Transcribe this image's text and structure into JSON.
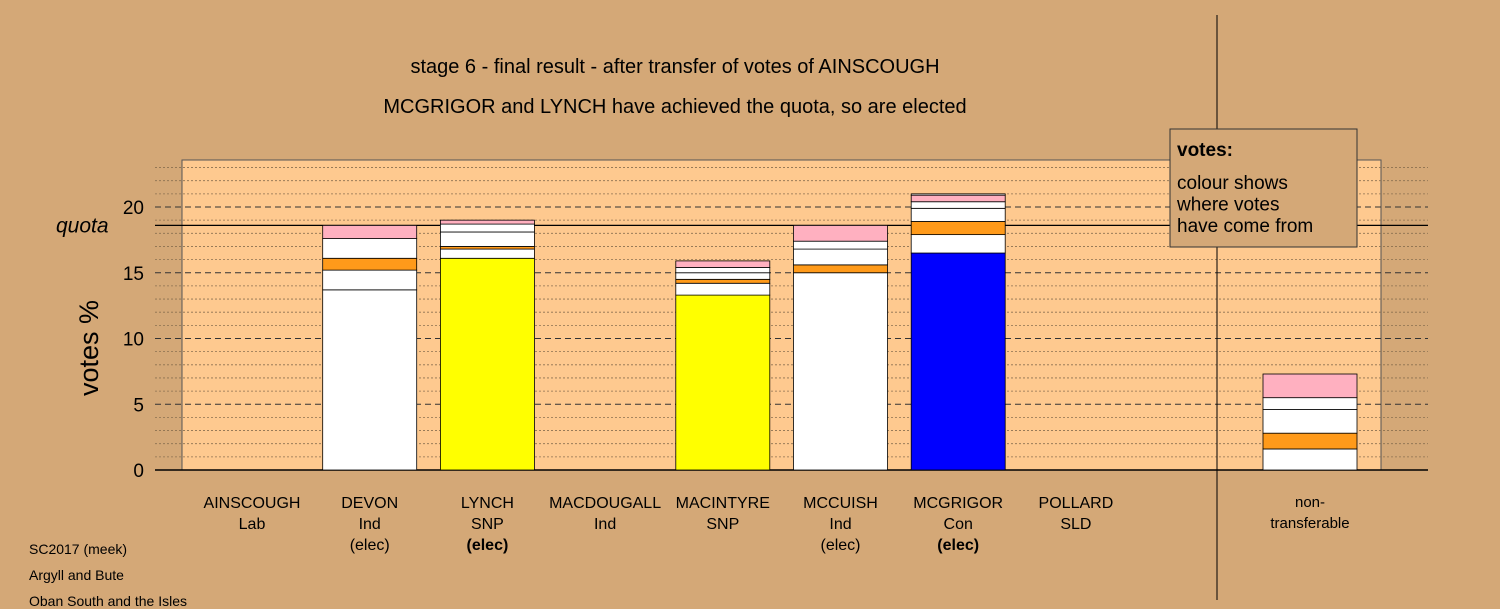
{
  "chart_data": {
    "type": "bar",
    "stacked": true,
    "title": "stage 6 - final result - after transfer of votes of AINSCOUGH",
    "subtitle": "MCGRIGOR and LYNCH have achieved the quota, so are elected",
    "ylabel": "votes %",
    "xlabel": "",
    "ylim": [
      0,
      23.5
    ],
    "yticks": [
      0,
      5,
      10,
      15,
      20
    ],
    "quota": {
      "label": "quota",
      "value": 18.6
    },
    "grid": true,
    "legend": {
      "title": "votes:",
      "lines": [
        "colour shows",
        "where votes",
        "have come from"
      ],
      "placement": "top-right"
    },
    "categories": [
      {
        "name": "AINSCOUGH",
        "party": "Lab",
        "status": "",
        "status_bold": false,
        "segments": []
      },
      {
        "name": "DEVON",
        "party": "Ind",
        "status": "(elec)",
        "status_bold": false,
        "segments": [
          {
            "value": 13.7,
            "color": "#ffffff"
          },
          {
            "value": 1.5,
            "color": "#ffffff"
          },
          {
            "value": 0.9,
            "color": "#ff9a1a"
          },
          {
            "value": 1.5,
            "color": "#ffffff"
          },
          {
            "value": 1.0,
            "color": "#ffb0c0"
          }
        ]
      },
      {
        "name": "LYNCH",
        "party": "SNP",
        "status": "(elec)",
        "status_bold": true,
        "segments": [
          {
            "value": 16.1,
            "color": "#ffff00"
          },
          {
            "value": 0.7,
            "color": "#ffffff"
          },
          {
            "value": 0.2,
            "color": "#ff9a1a"
          },
          {
            "value": 1.1,
            "color": "#ffffff"
          },
          {
            "value": 0.6,
            "color": "#ffffff"
          },
          {
            "value": 0.3,
            "color": "#ffb0c0"
          }
        ]
      },
      {
        "name": "MACDOUGALL",
        "party": "Ind",
        "status": "",
        "status_bold": false,
        "segments": []
      },
      {
        "name": "MACINTYRE",
        "party": "SNP",
        "status": "",
        "status_bold": false,
        "segments": [
          {
            "value": 13.3,
            "color": "#ffff00"
          },
          {
            "value": 0.9,
            "color": "#ffffff"
          },
          {
            "value": 0.3,
            "color": "#ff9a1a"
          },
          {
            "value": 0.5,
            "color": "#ffffff"
          },
          {
            "value": 0.4,
            "color": "#ffffff"
          },
          {
            "value": 0.5,
            "color": "#ffb0c0"
          }
        ]
      },
      {
        "name": "MCCUISH",
        "party": "Ind",
        "status": "(elec)",
        "status_bold": false,
        "segments": [
          {
            "value": 15.0,
            "color": "#ffffff"
          },
          {
            "value": 0.6,
            "color": "#ff9a1a"
          },
          {
            "value": 1.2,
            "color": "#ffffff"
          },
          {
            "value": 0.6,
            "color": "#ffffff"
          },
          {
            "value": 1.2,
            "color": "#ffb0c0"
          }
        ]
      },
      {
        "name": "MCGRIGOR",
        "party": "Con",
        "status": "(elec)",
        "status_bold": true,
        "segments": [
          {
            "value": 16.5,
            "color": "#0000ff"
          },
          {
            "value": 1.4,
            "color": "#ffffff"
          },
          {
            "value": 1.0,
            "color": "#ff9a1a"
          },
          {
            "value": 1.0,
            "color": "#ffffff"
          },
          {
            "value": 0.5,
            "color": "#ffffff"
          },
          {
            "value": 0.5,
            "color": "#ffb0c0"
          },
          {
            "value": 0.1,
            "color": "#ffffff"
          }
        ]
      },
      {
        "name": "POLLARD",
        "party": "SLD",
        "status": "",
        "status_bold": false,
        "segments": []
      }
    ],
    "nontransferable": {
      "label_lines": [
        "non-",
        "transferable"
      ],
      "segments": [
        {
          "value": 1.6,
          "color": "#ffffff"
        },
        {
          "value": 1.2,
          "color": "#ff9a1a"
        },
        {
          "value": 1.8,
          "color": "#ffffff"
        },
        {
          "value": 0.9,
          "color": "#ffffff"
        },
        {
          "value": 1.8,
          "color": "#ffb0c0"
        }
      ]
    }
  },
  "footer": {
    "line1": "SC2017 (meek)",
    "line2": "Argyll and Bute",
    "line3": "Oban South and the Isles"
  },
  "colors": {
    "background": "#d4a877",
    "plot_area": "#fec98f"
  }
}
